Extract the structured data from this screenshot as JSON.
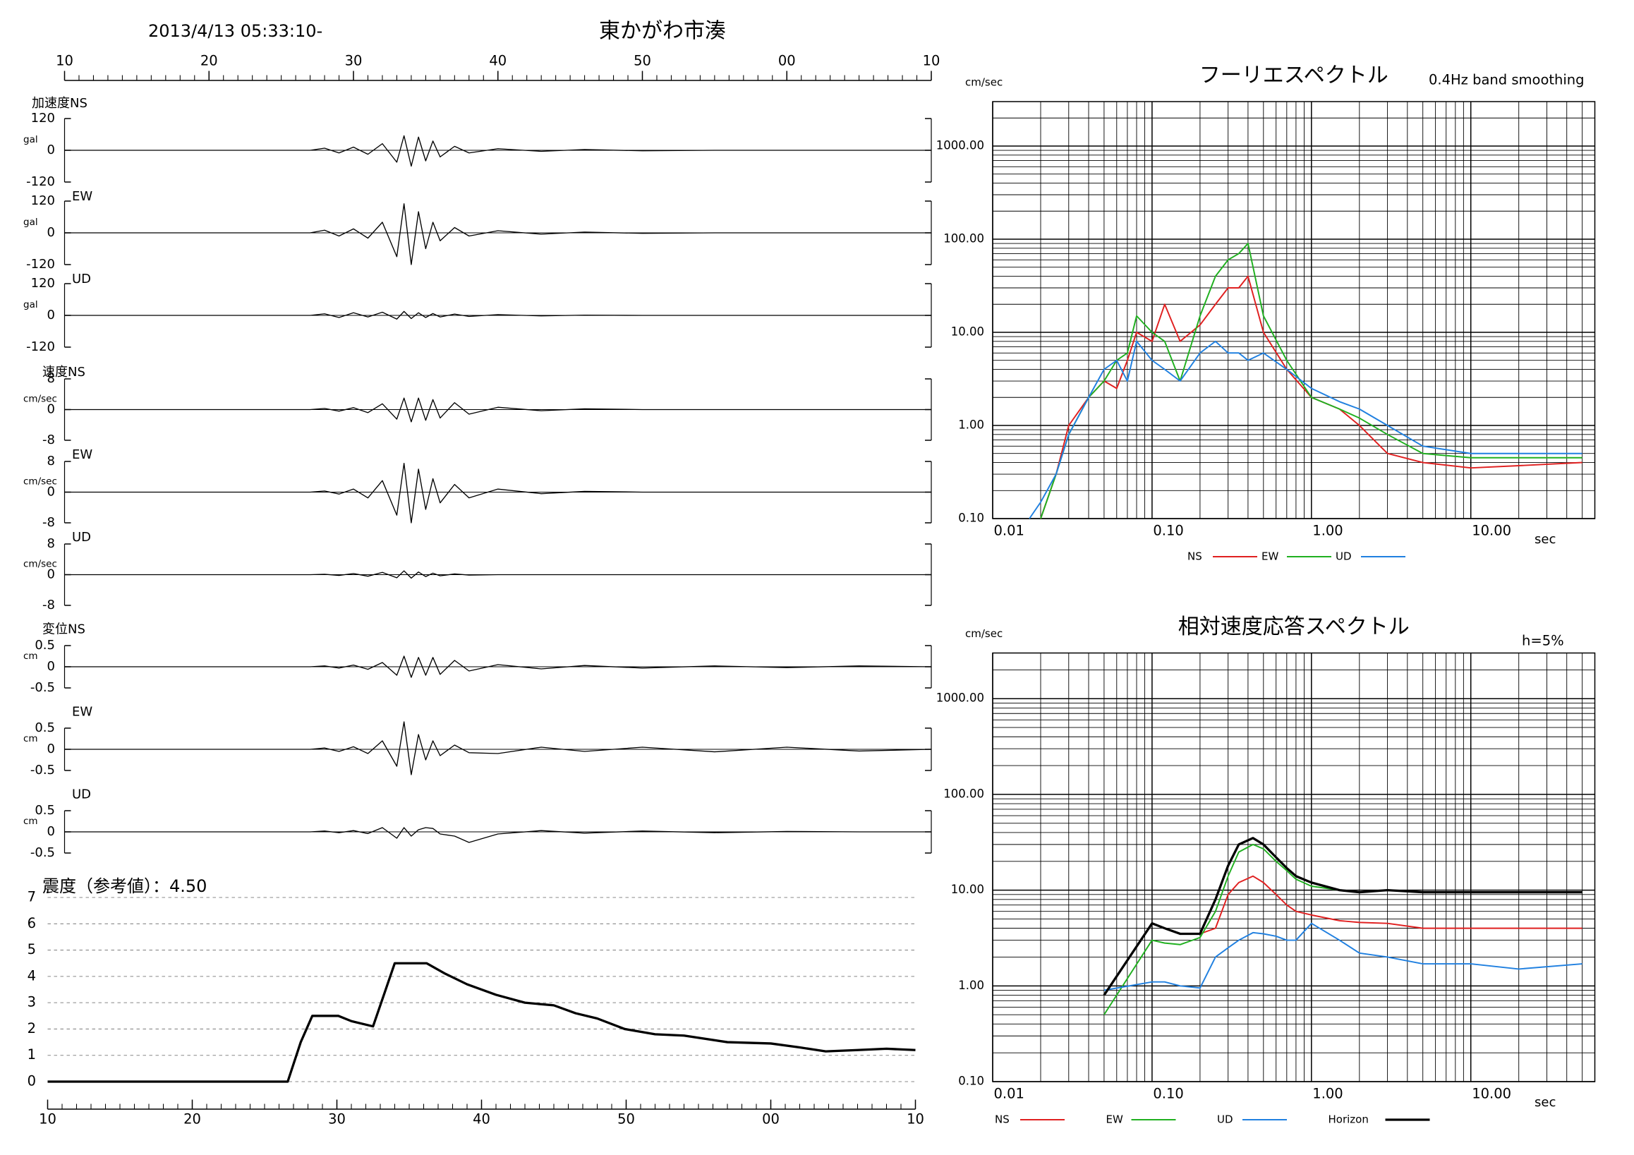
{
  "header": {
    "datetime": "2013/4/13 05:33:10-",
    "station": "東かがわ市湊"
  },
  "chart_data": [
    {
      "type": "line",
      "label": "加速度NS",
      "y_unit": "gal",
      "color": "#000000",
      "xlim": [
        0,
        60
      ],
      "xticks": [
        {
          "value": 0,
          "label": "10"
        },
        {
          "value": 10,
          "label": "20"
        },
        {
          "value": 20,
          "label": "30"
        },
        {
          "value": 30,
          "label": "40"
        },
        {
          "value": 40,
          "label": "50"
        },
        {
          "value": 50,
          "label": "00"
        },
        {
          "value": 60,
          "label": "10"
        }
      ],
      "ylim": [
        -120,
        120
      ],
      "yticks": [
        -120,
        0,
        120
      ],
      "x": [
        0,
        17,
        18,
        19,
        20,
        21,
        22,
        23,
        23.5,
        24,
        24.5,
        25,
        25.5,
        26,
        27,
        28,
        30,
        33,
        36,
        40,
        45,
        50,
        55,
        60
      ],
      "values": [
        0,
        0,
        8,
        -10,
        12,
        -15,
        25,
        -45,
        55,
        -60,
        50,
        -40,
        35,
        -25,
        15,
        -10,
        6,
        -4,
        3,
        -2,
        0,
        0,
        0,
        0
      ]
    },
    {
      "type": "line",
      "label": "EW",
      "y_unit": "gal",
      "color": "#000000",
      "xlim": [
        0,
        60
      ],
      "ylim": [
        -120,
        120
      ],
      "yticks": [
        -120,
        0,
        120
      ],
      "x": [
        0,
        17,
        18,
        19,
        20,
        21,
        22,
        23,
        23.5,
        24,
        24.5,
        25,
        25.5,
        26,
        27,
        28,
        30,
        33,
        36,
        40,
        45,
        50,
        55,
        60
      ],
      "values": [
        0,
        0,
        10,
        -12,
        15,
        -20,
        40,
        -90,
        110,
        -120,
        80,
        -60,
        40,
        -30,
        20,
        -12,
        8,
        -5,
        3,
        -2,
        0,
        0,
        0,
        0
      ]
    },
    {
      "type": "line",
      "label": "UD",
      "y_unit": "gal",
      "color": "#000000",
      "xlim": [
        0,
        60
      ],
      "ylim": [
        -120,
        120
      ],
      "yticks": [
        -120,
        0,
        120
      ],
      "x": [
        0,
        17,
        18,
        19,
        20,
        21,
        22,
        23,
        23.5,
        24,
        24.5,
        25,
        25.5,
        26,
        27,
        28,
        30,
        33,
        36,
        40,
        45,
        50,
        55,
        60
      ],
      "values": [
        0,
        0,
        6,
        -8,
        10,
        -6,
        12,
        -14,
        15,
        -12,
        10,
        -8,
        7,
        -6,
        5,
        -4,
        3,
        -2,
        1,
        0,
        0,
        0,
        0,
        0
      ]
    },
    {
      "type": "line",
      "label": "速度NS",
      "y_unit": "cm/sec",
      "color": "#000000",
      "xlim": [
        0,
        60
      ],
      "ylim": [
        -8,
        8
      ],
      "yticks": [
        -8,
        0,
        8
      ],
      "x": [
        0,
        17,
        18,
        19,
        20,
        21,
        22,
        23,
        23.5,
        24,
        24.5,
        25,
        25.5,
        26,
        27,
        28,
        30,
        33,
        36,
        40,
        45,
        50,
        55,
        60
      ],
      "values": [
        0,
        0,
        0.3,
        -0.4,
        0.5,
        -0.8,
        1.5,
        -2.5,
        3,
        -3.2,
        3,
        -2.8,
        2.6,
        -2.2,
        1.8,
        -1.2,
        0.6,
        -0.3,
        0.2,
        0,
        0,
        0,
        0,
        0
      ]
    },
    {
      "type": "line",
      "label": "EW",
      "y_unit": "cm/sec",
      "color": "#000000",
      "xlim": [
        0,
        60
      ],
      "ylim": [
        -8,
        8
      ],
      "yticks": [
        -8,
        0,
        8
      ],
      "x": [
        0,
        17,
        18,
        19,
        20,
        21,
        22,
        23,
        23.5,
        24,
        24.5,
        25,
        25.5,
        26,
        27,
        28,
        30,
        33,
        36,
        40,
        45,
        50,
        55,
        60
      ],
      "values": [
        0,
        0,
        0.3,
        -0.5,
        0.8,
        -1.5,
        3,
        -6,
        7.5,
        -8,
        6,
        -4.5,
        3.5,
        -2.8,
        2,
        -1.5,
        0.8,
        -0.4,
        0.2,
        0,
        0,
        0,
        0,
        0
      ]
    },
    {
      "type": "line",
      "label": "UD",
      "y_unit": "cm/sec",
      "color": "#000000",
      "xlim": [
        0,
        60
      ],
      "ylim": [
        -8,
        8
      ],
      "yticks": [
        -8,
        0,
        8
      ],
      "x": [
        0,
        17,
        18,
        19,
        20,
        21,
        22,
        23,
        23.5,
        24,
        24.5,
        25,
        25.5,
        26,
        27,
        28,
        30,
        33,
        36,
        40,
        45,
        50,
        55,
        60
      ],
      "values": [
        0,
        0,
        0.1,
        -0.2,
        0.3,
        -0.4,
        0.6,
        -0.8,
        1,
        -0.9,
        0.7,
        -0.5,
        0.4,
        -0.3,
        0.2,
        -0.1,
        0,
        0,
        0,
        0,
        0,
        0,
        0,
        0
      ]
    },
    {
      "type": "line",
      "label": "変位NS",
      "y_unit": "cm",
      "color": "#000000",
      "xlim": [
        0,
        60
      ],
      "ylim": [
        -0.5,
        0.5
      ],
      "yticks": [
        -0.5,
        0,
        0.5
      ],
      "x": [
        0,
        17,
        18,
        19,
        20,
        21,
        22,
        23,
        23.5,
        24,
        24.5,
        25,
        25.5,
        26,
        27,
        28,
        30,
        33,
        36,
        40,
        45,
        50,
        55,
        60
      ],
      "values": [
        0,
        0,
        0.02,
        -0.03,
        0.04,
        -0.06,
        0.1,
        -0.2,
        0.25,
        -0.25,
        0.22,
        -0.2,
        0.22,
        -0.18,
        0.15,
        -0.1,
        0.05,
        -0.05,
        0.03,
        -0.03,
        0.02,
        -0.02,
        0.02,
        0
      ]
    },
    {
      "type": "line",
      "label": "EW",
      "y_unit": "cm",
      "color": "#000000",
      "xlim": [
        0,
        60
      ],
      "ylim": [
        -0.5,
        0.5
      ],
      "yticks": [
        -0.5,
        0,
        0.5
      ],
      "x": [
        0,
        17,
        18,
        19,
        20,
        21,
        22,
        23,
        23.5,
        24,
        24.5,
        25,
        25.5,
        26,
        27,
        28,
        30,
        33,
        36,
        40,
        45,
        50,
        55,
        60
      ],
      "values": [
        0,
        0,
        0.03,
        -0.05,
        0.06,
        -0.1,
        0.2,
        -0.4,
        0.65,
        -0.6,
        0.35,
        -0.25,
        0.2,
        -0.15,
        0.1,
        -0.08,
        -0.1,
        0.05,
        -0.05,
        0.05,
        -0.06,
        0.05,
        -0.04,
        0
      ]
    },
    {
      "type": "line",
      "label": "UD",
      "y_unit": "cm",
      "color": "#000000",
      "xlim": [
        0,
        60
      ],
      "ylim": [
        -0.5,
        0.5
      ],
      "yticks": [
        -0.5,
        0,
        0.5
      ],
      "x": [
        0,
        17,
        18,
        19,
        20,
        21,
        22,
        23,
        23.5,
        24,
        24.5,
        25,
        25.5,
        26,
        27,
        28,
        30,
        33,
        36,
        40,
        45,
        50,
        55,
        60
      ],
      "values": [
        0,
        0,
        0.02,
        -0.02,
        0.03,
        -0.04,
        0.1,
        -0.15,
        0.1,
        -0.1,
        0.05,
        0.1,
        0.08,
        -0.05,
        -0.1,
        -0.25,
        -0.05,
        0.03,
        -0.03,
        0.02,
        -0.02,
        0.01,
        0,
        0
      ]
    },
    {
      "type": "line",
      "title": "震度（参考値）：4.50",
      "color": "#000000",
      "grid": true,
      "xlim": [
        0,
        60
      ],
      "xticks": [
        {
          "value": 0,
          "label": "10"
        },
        {
          "value": 10,
          "label": "20"
        },
        {
          "value": 20,
          "label": "30"
        },
        {
          "value": 30,
          "label": "40"
        },
        {
          "value": 40,
          "label": "50"
        },
        {
          "value": 50,
          "label": "00"
        },
        {
          "value": 60,
          "label": "10"
        }
      ],
      "ylim": [
        0,
        7
      ],
      "yticks": [
        0,
        1,
        2,
        3,
        4,
        5,
        6,
        7
      ],
      "x": [
        0,
        16.6,
        17.5,
        18.3,
        20.1,
        21,
        22.5,
        24,
        26.2,
        27.5,
        29,
        31,
        33,
        35,
        36.5,
        38,
        39.9,
        42,
        44,
        47,
        50,
        52,
        53.8,
        56,
        58,
        60
      ],
      "values": [
        0,
        0,
        1.5,
        2.5,
        2.5,
        2.3,
        2.1,
        4.5,
        4.5,
        4.1,
        3.7,
        3.3,
        3.0,
        2.9,
        2.6,
        2.4,
        2.0,
        1.8,
        1.75,
        1.5,
        1.45,
        1.3,
        1.15,
        1.2,
        1.25,
        1.2
      ]
    },
    {
      "type": "line",
      "title": "フーリエスペクトル",
      "subtitle": "0.4Hz band smoothing",
      "y_unit": "cm/sec",
      "x_unit": "sec",
      "xscale": "log",
      "yscale": "log",
      "grid": true,
      "legend": "bottom",
      "xlim": [
        0.01,
        60
      ],
      "ylim": [
        0.1,
        3000
      ],
      "xticks": [
        {
          "value": 0.01,
          "label": "0.01"
        },
        {
          "value": 0.1,
          "label": "0.10"
        },
        {
          "value": 1,
          "label": "1.00"
        },
        {
          "value": 10,
          "label": "10.00"
        }
      ],
      "yticks": [
        {
          "value": 0.1,
          "label": "0.10"
        },
        {
          "value": 1,
          "label": "1.00"
        },
        {
          "value": 10,
          "label": "10.00"
        },
        {
          "value": 100,
          "label": "100.00"
        },
        {
          "value": 1000,
          "label": "1000.00"
        }
      ],
      "x": [
        0.017,
        0.02,
        0.025,
        0.03,
        0.04,
        0.05,
        0.06,
        0.07,
        0.08,
        0.1,
        0.12,
        0.15,
        0.2,
        0.25,
        0.3,
        0.35,
        0.4,
        0.5,
        0.7,
        1,
        1.5,
        2,
        3,
        5,
        10,
        20,
        50
      ],
      "series": [
        {
          "name": "NS",
          "color": "#e02020",
          "values": [
            null,
            0.1,
            0.3,
            1,
            2,
            3,
            2.5,
            5,
            10,
            8,
            20,
            8,
            12,
            20,
            30,
            30,
            40,
            10,
            4,
            2,
            1.5,
            1,
            0.5,
            0.4,
            0.35,
            0.37,
            0.4
          ]
        },
        {
          "name": "EW",
          "color": "#20b020",
          "values": [
            null,
            0.1,
            0.3,
            0.8,
            2,
            3,
            5,
            6,
            15,
            10,
            8,
            3,
            15,
            40,
            60,
            70,
            90,
            15,
            5,
            2,
            1.5,
            1.2,
            0.8,
            0.5,
            0.45,
            0.45,
            0.45
          ]
        },
        {
          "name": "UD",
          "color": "#2080e0",
          "values": [
            0.1,
            0.15,
            0.3,
            0.8,
            2,
            4,
            5,
            3,
            8,
            5,
            4,
            3,
            6,
            8,
            6,
            6,
            5,
            6,
            4,
            2.5,
            1.8,
            1.5,
            1,
            0.6,
            0.5,
            0.5,
            0.5
          ]
        }
      ]
    },
    {
      "type": "line",
      "title": "相対速度応答スペクトル",
      "annotation": "h=5%",
      "y_unit": "cm/sec",
      "x_unit": "sec",
      "xscale": "log",
      "yscale": "log",
      "grid": true,
      "legend": "bottom",
      "xlim": [
        0.01,
        60
      ],
      "ylim": [
        0.1,
        3000
      ],
      "xticks": [
        {
          "value": 0.01,
          "label": "0.01"
        },
        {
          "value": 0.1,
          "label": "0.10"
        },
        {
          "value": 1,
          "label": "1.00"
        },
        {
          "value": 10,
          "label": "10.00"
        }
      ],
      "yticks": [
        {
          "value": 0.1,
          "label": "0.10"
        },
        {
          "value": 1,
          "label": "1.00"
        },
        {
          "value": 10,
          "label": "10.00"
        },
        {
          "value": 100,
          "label": "100.00"
        },
        {
          "value": 1000,
          "label": "1000.00"
        }
      ],
      "x": [
        0.05,
        0.1,
        0.12,
        0.15,
        0.2,
        0.25,
        0.3,
        0.35,
        0.43,
        0.5,
        0.6,
        0.7,
        0.8,
        1,
        1.5,
        2,
        3,
        5,
        10,
        20,
        50
      ],
      "series": [
        {
          "name": "NS",
          "color": "#e02020",
          "values": [
            0.8,
            4.5,
            4,
            3.5,
            3.5,
            4,
            9,
            12,
            14,
            12,
            9,
            7,
            6,
            5.5,
            4.8,
            4.6,
            4.5,
            4,
            4,
            4,
            4
          ]
        },
        {
          "name": "EW",
          "color": "#20b020",
          "values": [
            0.5,
            3,
            2.8,
            2.7,
            3.2,
            6,
            14,
            25,
            30,
            27,
            20,
            16,
            13,
            11,
            10,
            9.5,
            10,
            9.5,
            9.5,
            9.5,
            9.5
          ]
        },
        {
          "name": "UD",
          "color": "#2080e0",
          "values": [
            0.9,
            1.1,
            1.1,
            1,
            0.95,
            2,
            2.5,
            3,
            3.6,
            3.5,
            3.3,
            3,
            3,
            4.5,
            3,
            2.2,
            2,
            1.7,
            1.7,
            1.5,
            1.7
          ]
        },
        {
          "name": "Horizon",
          "color": "#000000",
          "values": [
            0.8,
            4.5,
            4,
            3.5,
            3.5,
            8,
            18,
            30,
            35,
            30,
            22,
            17,
            14,
            12,
            10,
            9.5,
            10,
            9.5,
            9.5,
            9.5,
            9.5
          ]
        }
      ]
    }
  ]
}
